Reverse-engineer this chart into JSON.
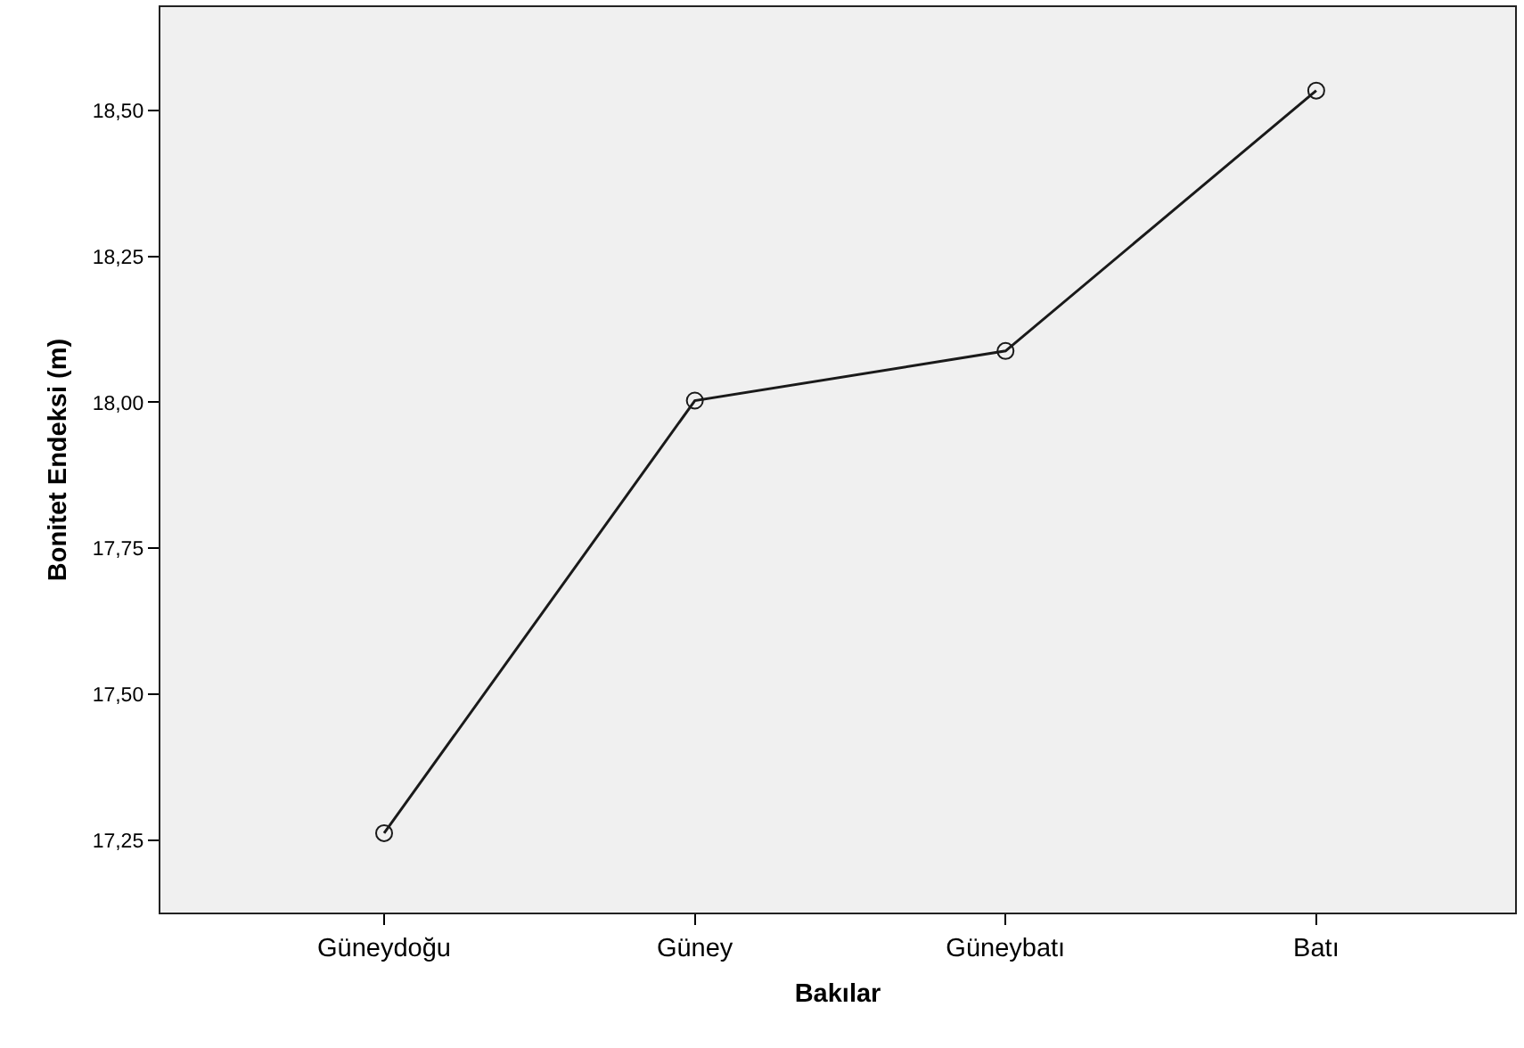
{
  "chart_data": {
    "type": "line",
    "xlabel": "Bakılar",
    "ylabel": "Bonitet Endeksi (m)",
    "categories": [
      "Güneydoğu",
      "Güney",
      "Güneybatı",
      "Batı"
    ],
    "series": [
      {
        "color": "#1a1a1a",
        "values": [
          17.262,
          18.003,
          18.088,
          18.534
        ]
      }
    ],
    "ylim": [
      17.126,
      18.677
    ],
    "yticks": [
      {
        "value": 17.25,
        "label": "17,25"
      },
      {
        "value": 17.5,
        "label": "17,50"
      },
      {
        "value": 17.75,
        "label": "17,75"
      },
      {
        "value": 18.0,
        "label": "18,00"
      },
      {
        "value": 18.25,
        "label": "18,25"
      },
      {
        "value": 18.5,
        "label": "18,50"
      }
    ],
    "grid": false,
    "marker": "circle",
    "line_style": "solid"
  }
}
